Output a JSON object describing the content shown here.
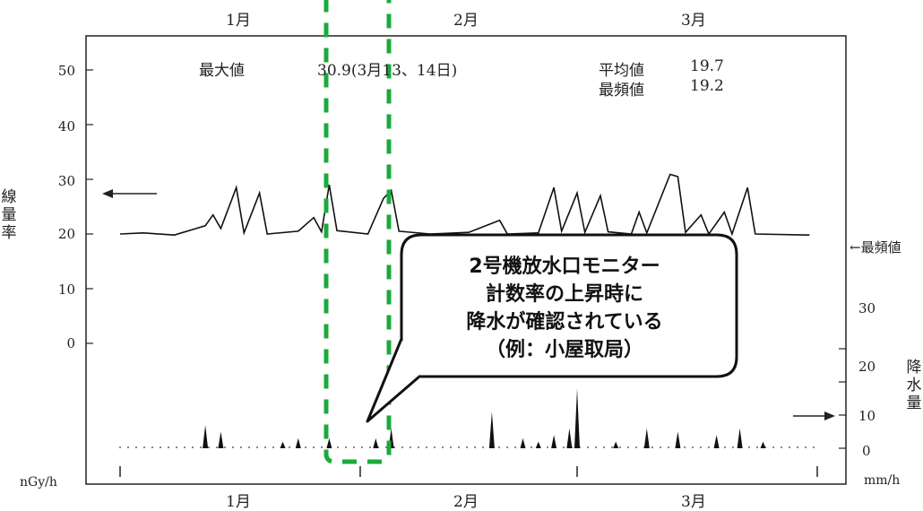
{
  "chart_data": {
    "type": "line",
    "title": "",
    "months_top": [
      "1月",
      "2月",
      "3月"
    ],
    "months_bottom": [
      "1月",
      "2月",
      "3月"
    ],
    "dose_rate": {
      "unit": "nGy/h",
      "axis_label": [
        "線",
        "量",
        "率"
      ],
      "yticks": [
        "50",
        "40",
        "30",
        "20",
        "10",
        "0"
      ],
      "ylim": [
        0,
        55
      ],
      "series": [
        {
          "date": "01-01",
          "value": 20.0
        },
        {
          "date": "01-04",
          "value": 20.2
        },
        {
          "date": "01-08",
          "value": 19.8
        },
        {
          "date": "01-12",
          "value": 21.5
        },
        {
          "date": "01-13",
          "value": 23.5
        },
        {
          "date": "01-14",
          "value": 21.0
        },
        {
          "date": "01-16",
          "value": 28.5
        },
        {
          "date": "01-17",
          "value": 20.2
        },
        {
          "date": "01-19",
          "value": 27.5
        },
        {
          "date": "01-20",
          "value": 20.0
        },
        {
          "date": "01-24",
          "value": 20.5
        },
        {
          "date": "01-26",
          "value": 23.0
        },
        {
          "date": "01-27",
          "value": 20.4
        },
        {
          "date": "01-28",
          "value": 29.0
        },
        {
          "date": "01-29",
          "value": 20.6
        },
        {
          "date": "02-02",
          "value": 20.0
        },
        {
          "date": "02-04",
          "value": 26.5
        },
        {
          "date": "02-05",
          "value": 28.0
        },
        {
          "date": "02-06",
          "value": 20.5
        },
        {
          "date": "02-10",
          "value": 20.0
        },
        {
          "date": "02-15",
          "value": 20.3
        },
        {
          "date": "02-19",
          "value": 22.5
        },
        {
          "date": "02-20",
          "value": 20.0
        },
        {
          "date": "02-24",
          "value": 20.2
        },
        {
          "date": "02-26",
          "value": 28.5
        },
        {
          "date": "02-27",
          "value": 20.5
        },
        {
          "date": "03-01",
          "value": 27.5
        },
        {
          "date": "03-02",
          "value": 20.3
        },
        {
          "date": "03-04",
          "value": 27.0
        },
        {
          "date": "03-05",
          "value": 20.4
        },
        {
          "date": "03-08",
          "value": 20.0
        },
        {
          "date": "03-09",
          "value": 24.0
        },
        {
          "date": "03-10",
          "value": 20.2
        },
        {
          "date": "03-13",
          "value": 30.9
        },
        {
          "date": "03-14",
          "value": 30.5
        },
        {
          "date": "03-15",
          "value": 20.3
        },
        {
          "date": "03-17",
          "value": 23.5
        },
        {
          "date": "03-18",
          "value": 20.0
        },
        {
          "date": "03-20",
          "value": 24.0
        },
        {
          "date": "03-21",
          "value": 20.0
        },
        {
          "date": "03-23",
          "value": 28.5
        },
        {
          "date": "03-24",
          "value": 20.0
        },
        {
          "date": "03-31",
          "value": 19.8
        }
      ]
    },
    "precipitation": {
      "unit": "mm/h",
      "axis_label": [
        "降",
        "水",
        "量"
      ],
      "yticks": [
        "30",
        "20",
        "10",
        "0"
      ],
      "ylim": [
        0,
        30
      ],
      "series": [
        {
          "date": "01-12",
          "value": 7
        },
        {
          "date": "01-14",
          "value": 5
        },
        {
          "date": "01-22",
          "value": 2
        },
        {
          "date": "01-24",
          "value": 3
        },
        {
          "date": "01-28",
          "value": 3
        },
        {
          "date": "02-03",
          "value": 3
        },
        {
          "date": "02-05",
          "value": 6
        },
        {
          "date": "02-18",
          "value": 11
        },
        {
          "date": "02-22",
          "value": 3
        },
        {
          "date": "02-24",
          "value": 2
        },
        {
          "date": "02-26",
          "value": 4
        },
        {
          "date": "02-28",
          "value": 6
        },
        {
          "date": "03-01",
          "value": 18
        },
        {
          "date": "03-06",
          "value": 2
        },
        {
          "date": "03-10",
          "value": 6
        },
        {
          "date": "03-14",
          "value": 5
        },
        {
          "date": "03-19",
          "value": 4
        },
        {
          "date": "03-22",
          "value": 6
        },
        {
          "date": "03-25",
          "value": 2
        }
      ]
    },
    "annotations": {
      "max_label": "最大値",
      "max_value": "30.9(3月13、14日)",
      "mean_label": "平均値",
      "mean_value": "19.7",
      "mode_label": "最頻値",
      "mode_value": "19.2",
      "mode_marker": "←最頻値"
    },
    "callout": {
      "lines": [
        "2号機放水口モニター",
        "計数率の上昇時に",
        "降水が確認されている",
        "（例：小屋取局）"
      ],
      "highlight_color": "#1aaa3c"
    }
  }
}
